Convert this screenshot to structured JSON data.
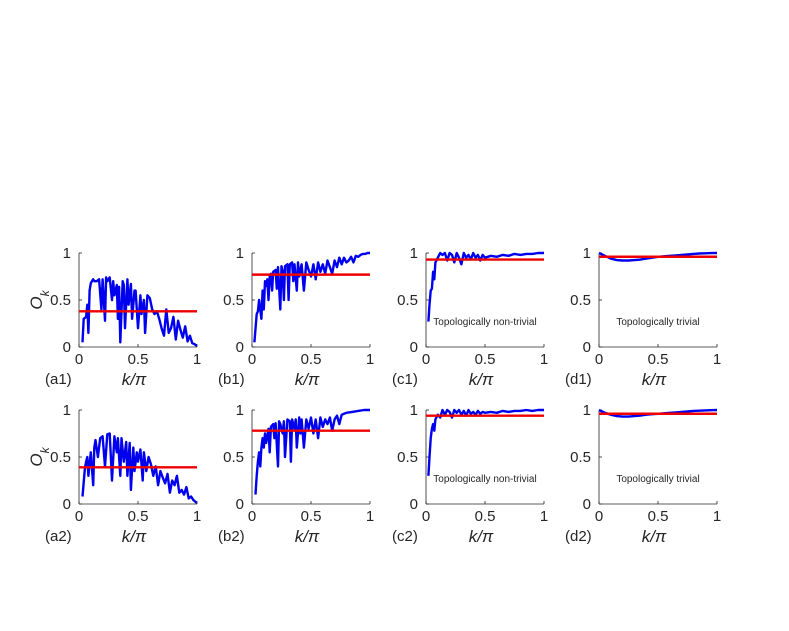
{
  "colors": {
    "curve": "#0000ee",
    "mean": "#ee0000",
    "axis": "#262626",
    "background": "#ffffff"
  },
  "chart_data": [
    {
      "type": "line",
      "panel_label": "(a1)",
      "xlabel": "k/π",
      "ylabel": "O_k",
      "xlim": [
        0,
        1
      ],
      "ylim": [
        0,
        1
      ],
      "xticks": [
        "0",
        "0.5",
        "1"
      ],
      "yticks": [
        "0",
        "0.5",
        "1"
      ],
      "annotation": "",
      "series": [
        {
          "x": [
            0.03,
            0.04,
            0.06,
            0.07,
            0.08,
            0.09,
            0.1,
            0.11,
            0.12,
            0.13,
            0.15,
            0.17,
            0.19,
            0.2,
            0.22,
            0.23,
            0.24,
            0.26,
            0.28,
            0.29,
            0.3,
            0.32,
            0.33,
            0.34,
            0.35,
            0.37,
            0.38,
            0.39,
            0.41,
            0.42,
            0.44,
            0.45,
            0.47,
            0.48,
            0.5,
            0.52,
            0.53,
            0.55,
            0.56,
            0.58,
            0.6,
            0.62,
            0.64,
            0.66,
            0.68,
            0.7,
            0.72,
            0.74,
            0.76,
            0.78,
            0.8,
            0.82,
            0.84,
            0.86,
            0.88,
            0.9,
            0.92,
            0.94,
            0.96,
            0.98,
            1.0
          ],
          "y": [
            0.05,
            0.3,
            0.32,
            0.45,
            0.15,
            0.6,
            0.68,
            0.7,
            0.72,
            0.7,
            0.7,
            0.72,
            0.4,
            0.72,
            0.28,
            0.74,
            0.7,
            0.74,
            0.5,
            0.7,
            0.55,
            0.66,
            0.3,
            0.64,
            0.05,
            0.7,
            0.66,
            0.2,
            0.72,
            0.45,
            0.67,
            0.3,
            0.6,
            0.6,
            0.2,
            0.55,
            0.35,
            0.5,
            0.15,
            0.55,
            0.52,
            0.4,
            0.35,
            0.38,
            0.3,
            0.2,
            0.12,
            0.4,
            0.15,
            0.2,
            0.32,
            0.08,
            0.28,
            0.18,
            0.1,
            0.22,
            0.06,
            0.12,
            0.04,
            0.03,
            0.01
          ]
        }
      ],
      "mean": 0.38
    },
    {
      "type": "line",
      "panel_label": "(b1)",
      "xlabel": "k/π",
      "ylabel": "",
      "xlim": [
        0,
        1
      ],
      "ylim": [
        0,
        1
      ],
      "xticks": [
        "0",
        "0.5",
        "1"
      ],
      "yticks": [
        "0",
        "0.5",
        "1"
      ],
      "annotation": "",
      "series": [
        {
          "x": [
            0.02,
            0.04,
            0.05,
            0.06,
            0.08,
            0.09,
            0.1,
            0.11,
            0.12,
            0.13,
            0.14,
            0.15,
            0.16,
            0.17,
            0.18,
            0.2,
            0.21,
            0.22,
            0.24,
            0.25,
            0.26,
            0.27,
            0.28,
            0.3,
            0.31,
            0.32,
            0.34,
            0.35,
            0.36,
            0.38,
            0.39,
            0.4,
            0.42,
            0.44,
            0.46,
            0.48,
            0.5,
            0.52,
            0.54,
            0.56,
            0.58,
            0.6,
            0.62,
            0.64,
            0.66,
            0.68,
            0.7,
            0.72,
            0.74,
            0.76,
            0.78,
            0.8,
            0.82,
            0.84,
            0.86,
            0.88,
            0.9,
            0.92,
            0.94,
            0.96,
            0.98,
            1.0
          ],
          "y": [
            0.05,
            0.35,
            0.38,
            0.5,
            0.3,
            0.6,
            0.4,
            0.7,
            0.65,
            0.72,
            0.5,
            0.75,
            0.78,
            0.6,
            0.8,
            0.82,
            0.62,
            0.85,
            0.4,
            0.86,
            0.8,
            0.5,
            0.86,
            0.88,
            0.5,
            0.88,
            0.9,
            0.7,
            0.88,
            0.6,
            0.9,
            0.75,
            0.88,
            0.6,
            0.9,
            0.82,
            0.75,
            0.88,
            0.72,
            0.9,
            0.8,
            0.88,
            0.78,
            0.92,
            0.85,
            0.78,
            0.92,
            0.85,
            0.95,
            0.88,
            0.95,
            0.9,
            0.92,
            0.96,
            0.9,
            0.97,
            0.96,
            0.98,
            0.99,
            0.99,
            1.0,
            1.0
          ]
        }
      ],
      "mean": 0.77
    },
    {
      "type": "line",
      "panel_label": "(c1)",
      "xlabel": "k/π",
      "ylabel": "",
      "xlim": [
        0,
        1
      ],
      "ylim": [
        0,
        1
      ],
      "xticks": [
        "0",
        "0.5",
        "1"
      ],
      "yticks": [
        "0",
        "0.5",
        "1"
      ],
      "annotation": "Topologically non-trivial",
      "series": [
        {
          "x": [
            0.02,
            0.03,
            0.04,
            0.05,
            0.06,
            0.07,
            0.08,
            0.1,
            0.12,
            0.14,
            0.16,
            0.18,
            0.2,
            0.22,
            0.24,
            0.26,
            0.28,
            0.3,
            0.32,
            0.34,
            0.36,
            0.38,
            0.4,
            0.42,
            0.44,
            0.46,
            0.48,
            0.5,
            0.55,
            0.6,
            0.65,
            0.7,
            0.75,
            0.8,
            0.85,
            0.9,
            0.95,
            1.0
          ],
          "y": [
            0.27,
            0.45,
            0.6,
            0.62,
            0.8,
            0.72,
            0.9,
            0.95,
            1.0,
            0.98,
            1.0,
            0.92,
            1.0,
            0.98,
            0.9,
            1.0,
            0.95,
            0.88,
            1.0,
            0.95,
            0.98,
            0.93,
            1.0,
            0.95,
            0.98,
            0.92,
            0.98,
            0.95,
            0.97,
            0.96,
            0.98,
            0.97,
            0.99,
            0.98,
            0.99,
            0.99,
            1.0,
            1.0
          ]
        }
      ],
      "mean": 0.93
    },
    {
      "type": "line",
      "panel_label": "(d1)",
      "xlabel": "k/π",
      "ylabel": "",
      "xlim": [
        0,
        1
      ],
      "ylim": [
        0,
        1
      ],
      "xticks": [
        "0",
        "0.5",
        "1"
      ],
      "yticks": [
        "0",
        "0.5",
        "1"
      ],
      "annotation": "Topologically trivial",
      "series": [
        {
          "x": [
            0.0,
            0.05,
            0.1,
            0.15,
            0.2,
            0.25,
            0.3,
            0.35,
            0.4,
            0.45,
            0.5,
            0.55,
            0.6,
            0.65,
            0.7,
            0.75,
            0.8,
            0.85,
            0.9,
            0.95,
            1.0
          ],
          "y": [
            1.0,
            0.97,
            0.94,
            0.925,
            0.92,
            0.92,
            0.925,
            0.93,
            0.94,
            0.95,
            0.96,
            0.965,
            0.97,
            0.975,
            0.98,
            0.985,
            0.99,
            0.995,
            0.997,
            0.999,
            1.0
          ]
        }
      ],
      "mean": 0.96
    },
    {
      "type": "line",
      "panel_label": "(a2)",
      "xlabel": "k/π",
      "ylabel": "O_k",
      "xlim": [
        0,
        1
      ],
      "ylim": [
        0,
        1
      ],
      "xticks": [
        "0",
        "0.5",
        "1"
      ],
      "yticks": [
        "0",
        "0.5",
        "1"
      ],
      "annotation": "",
      "series": [
        {
          "x": [
            0.03,
            0.05,
            0.06,
            0.07,
            0.08,
            0.1,
            0.12,
            0.13,
            0.14,
            0.16,
            0.18,
            0.2,
            0.22,
            0.24,
            0.26,
            0.28,
            0.3,
            0.32,
            0.33,
            0.35,
            0.36,
            0.38,
            0.4,
            0.41,
            0.43,
            0.44,
            0.46,
            0.47,
            0.49,
            0.5,
            0.52,
            0.54,
            0.55,
            0.57,
            0.59,
            0.61,
            0.63,
            0.65,
            0.67,
            0.69,
            0.71,
            0.73,
            0.75,
            0.77,
            0.79,
            0.81,
            0.83,
            0.85,
            0.87,
            0.89,
            0.91,
            0.93,
            0.95,
            0.97,
            1.0
          ],
          "y": [
            0.08,
            0.38,
            0.45,
            0.5,
            0.3,
            0.55,
            0.2,
            0.6,
            0.68,
            0.5,
            0.7,
            0.72,
            0.4,
            0.74,
            0.75,
            0.25,
            0.72,
            0.55,
            0.7,
            0.3,
            0.7,
            0.45,
            0.66,
            0.3,
            0.65,
            0.15,
            0.6,
            0.35,
            0.55,
            0.45,
            0.58,
            0.25,
            0.55,
            0.35,
            0.5,
            0.42,
            0.3,
            0.4,
            0.2,
            0.35,
            0.28,
            0.22,
            0.32,
            0.12,
            0.25,
            0.2,
            0.3,
            0.12,
            0.15,
            0.1,
            0.18,
            0.06,
            0.08,
            0.04,
            0.01
          ]
        }
      ],
      "mean": 0.39
    },
    {
      "type": "line",
      "panel_label": "(b2)",
      "xlabel": "k/π",
      "ylabel": "",
      "xlim": [
        0,
        1
      ],
      "ylim": [
        0,
        1
      ],
      "xticks": [
        "0",
        "0.5",
        "1"
      ],
      "yticks": [
        "0",
        "0.5",
        "1"
      ],
      "annotation": "",
      "series": [
        {
          "x": [
            0.03,
            0.04,
            0.05,
            0.06,
            0.07,
            0.08,
            0.09,
            0.1,
            0.11,
            0.12,
            0.14,
            0.15,
            0.16,
            0.18,
            0.19,
            0.2,
            0.22,
            0.23,
            0.24,
            0.26,
            0.27,
            0.28,
            0.3,
            0.32,
            0.33,
            0.34,
            0.36,
            0.37,
            0.38,
            0.4,
            0.41,
            0.42,
            0.44,
            0.46,
            0.48,
            0.5,
            0.52,
            0.54,
            0.56,
            0.58,
            0.6,
            0.62,
            0.64,
            0.66,
            0.68,
            0.7,
            0.72,
            0.74,
            0.76,
            0.78,
            0.8,
            0.85,
            0.9,
            0.95,
            1.0
          ],
          "y": [
            0.1,
            0.3,
            0.45,
            0.55,
            0.4,
            0.6,
            0.7,
            0.6,
            0.75,
            0.65,
            0.8,
            0.55,
            0.82,
            0.85,
            0.7,
            0.86,
            0.4,
            0.88,
            0.85,
            0.75,
            0.88,
            0.5,
            0.9,
            0.88,
            0.45,
            0.9,
            0.8,
            0.9,
            0.6,
            0.92,
            0.75,
            0.9,
            0.6,
            0.9,
            0.8,
            0.92,
            0.75,
            0.9,
            0.7,
            0.92,
            0.82,
            0.9,
            0.85,
            0.92,
            0.78,
            0.9,
            0.94,
            0.85,
            0.95,
            0.96,
            0.97,
            0.98,
            0.99,
            1.0,
            1.0
          ]
        }
      ],
      "mean": 0.78
    },
    {
      "type": "line",
      "panel_label": "(c2)",
      "xlabel": "k/π",
      "ylabel": "",
      "xlim": [
        0,
        1
      ],
      "ylim": [
        0,
        1
      ],
      "xticks": [
        "0",
        "0.5",
        "1"
      ],
      "yticks": [
        "0",
        "0.5",
        "1"
      ],
      "annotation": "Topologically non-trivial",
      "series": [
        {
          "x": [
            0.02,
            0.03,
            0.04,
            0.05,
            0.06,
            0.07,
            0.08,
            0.1,
            0.12,
            0.14,
            0.16,
            0.18,
            0.2,
            0.22,
            0.24,
            0.26,
            0.28,
            0.3,
            0.32,
            0.34,
            0.36,
            0.38,
            0.4,
            0.42,
            0.44,
            0.46,
            0.48,
            0.5,
            0.55,
            0.6,
            0.65,
            0.7,
            0.75,
            0.8,
            0.85,
            0.9,
            0.95,
            1.0
          ],
          "y": [
            0.3,
            0.5,
            0.7,
            0.8,
            0.85,
            0.78,
            0.9,
            0.95,
            0.92,
            1.0,
            0.95,
            1.0,
            0.98,
            0.92,
            1.0,
            0.97,
            1.0,
            0.95,
            0.99,
            0.94,
            1.0,
            0.96,
            0.98,
            0.95,
            0.99,
            0.96,
            0.98,
            0.97,
            0.98,
            0.97,
            0.99,
            0.98,
            0.99,
            0.99,
            1.0,
            0.99,
            1.0,
            1.0
          ]
        }
      ],
      "mean": 0.94
    },
    {
      "type": "line",
      "panel_label": "(d2)",
      "xlabel": "k/π",
      "ylabel": "",
      "xlim": [
        0,
        1
      ],
      "ylim": [
        0,
        1
      ],
      "xticks": [
        "0",
        "0.5",
        "1"
      ],
      "yticks": [
        "0",
        "0.5",
        "1"
      ],
      "annotation": "Topologically trivial",
      "series": [
        {
          "x": [
            0.0,
            0.05,
            0.1,
            0.15,
            0.2,
            0.25,
            0.3,
            0.35,
            0.4,
            0.45,
            0.5,
            0.55,
            0.6,
            0.65,
            0.7,
            0.75,
            0.8,
            0.85,
            0.9,
            0.95,
            1.0
          ],
          "y": [
            1.0,
            0.97,
            0.95,
            0.935,
            0.93,
            0.93,
            0.935,
            0.94,
            0.95,
            0.955,
            0.96,
            0.965,
            0.97,
            0.975,
            0.98,
            0.985,
            0.99,
            0.993,
            0.996,
            0.998,
            1.0
          ]
        }
      ],
      "mean": 0.96
    }
  ]
}
